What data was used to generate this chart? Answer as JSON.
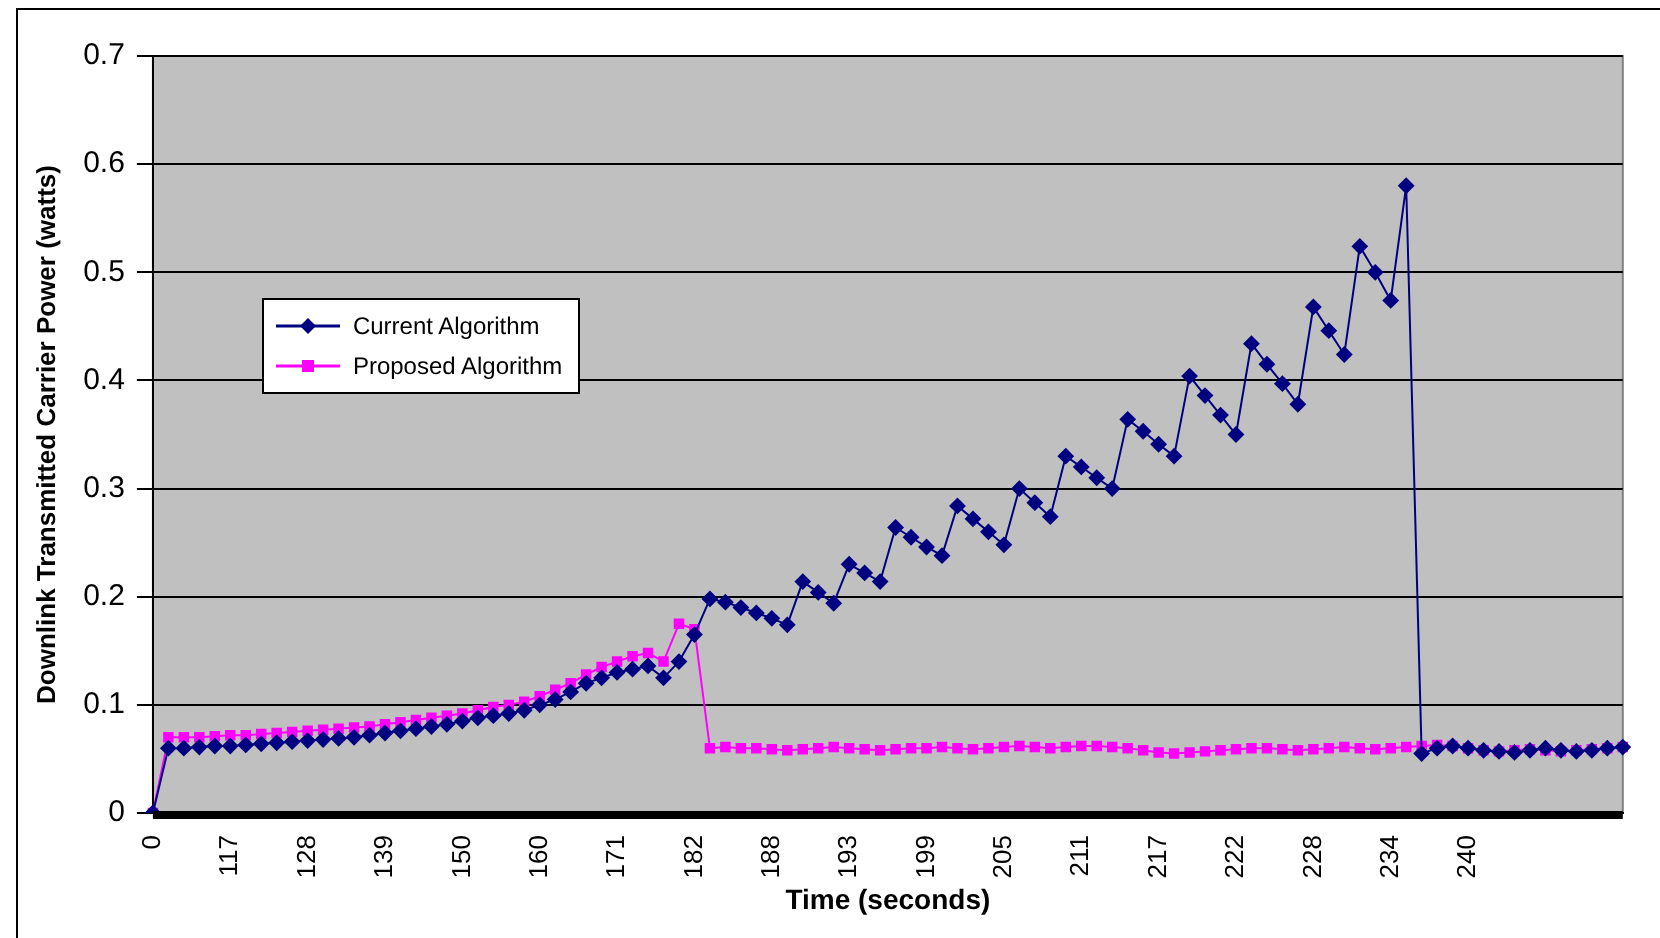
{
  "chart_data": {
    "type": "line",
    "xlabel": "Time (seconds)",
    "ylabel": "Downlink Transmitted Carrier Power (watts)",
    "categories": [
      "0",
      null,
      null,
      null,
      null,
      "117",
      null,
      null,
      null,
      null,
      "128",
      null,
      null,
      null,
      null,
      "139",
      null,
      null,
      null,
      null,
      "150",
      null,
      null,
      null,
      null,
      "160",
      null,
      null,
      null,
      null,
      "171",
      null,
      null,
      null,
      null,
      "182",
      null,
      null,
      null,
      null,
      "188",
      null,
      null,
      null,
      null,
      "193",
      null,
      null,
      null,
      null,
      "199",
      null,
      null,
      null,
      null,
      "205",
      null,
      null,
      null,
      null,
      "211",
      null,
      null,
      null,
      null,
      "217",
      null,
      null,
      null,
      null,
      "222",
      null,
      null,
      null,
      null,
      "228",
      null,
      null,
      null,
      null,
      "234",
      null,
      null,
      null,
      null,
      "240",
      null,
      null,
      null,
      null,
      null,
      null,
      null,
      null,
      null,
      null
    ],
    "series": [
      {
        "name": "Current Algorithm",
        "color": "#000080",
        "marker": "diamond",
        "values": [
          0,
          0.06,
          0.06,
          0.061,
          0.062,
          0.062,
          0.063,
          0.064,
          0.065,
          0.066,
          0.067,
          0.068,
          0.069,
          0.07,
          0.072,
          0.074,
          0.076,
          0.078,
          0.08,
          0.082,
          0.085,
          0.088,
          0.09,
          0.092,
          0.095,
          0.1,
          0.105,
          0.112,
          0.12,
          0.125,
          0.13,
          0.133,
          0.136,
          0.125,
          0.14,
          0.165,
          0.198,
          0.195,
          0.19,
          0.185,
          0.18,
          0.174,
          0.214,
          0.204,
          0.194,
          0.23,
          0.222,
          0.214,
          0.264,
          0.255,
          0.246,
          0.238,
          0.284,
          0.272,
          0.26,
          0.248,
          0.3,
          0.287,
          0.274,
          0.33,
          0.32,
          0.31,
          0.3,
          0.364,
          0.353,
          0.341,
          0.33,
          0.404,
          0.386,
          0.368,
          0.35,
          0.434,
          0.415,
          0.397,
          0.378,
          0.468,
          0.446,
          0.424,
          0.524,
          0.5,
          0.474,
          0.58,
          0.055,
          0.06,
          0.062,
          0.06,
          0.058,
          0.057,
          0.056,
          0.058,
          0.06,
          0.058,
          0.057,
          0.058,
          0.06,
          0.061
        ]
      },
      {
        "name": "Proposed Algorithm",
        "color": "#ff00ff",
        "marker": "square",
        "values": [
          0,
          0.07,
          0.07,
          0.07,
          0.071,
          0.072,
          0.072,
          0.073,
          0.074,
          0.075,
          0.076,
          0.077,
          0.078,
          0.079,
          0.08,
          0.082,
          0.084,
          0.086,
          0.088,
          0.09,
          0.092,
          0.095,
          0.098,
          0.1,
          0.103,
          0.108,
          0.114,
          0.12,
          0.128,
          0.135,
          0.14,
          0.145,
          0.148,
          0.14,
          0.175,
          0.17,
          0.06,
          0.061,
          0.06,
          0.06,
          0.059,
          0.058,
          0.059,
          0.06,
          0.061,
          0.06,
          0.059,
          0.058,
          0.059,
          0.06,
          0.06,
          0.061,
          0.06,
          0.059,
          0.06,
          0.061,
          0.062,
          0.061,
          0.06,
          0.061,
          0.062,
          0.062,
          0.061,
          0.06,
          0.058,
          0.056,
          0.055,
          0.056,
          0.057,
          0.058,
          0.059,
          0.06,
          0.06,
          0.059,
          0.058,
          0.059,
          0.06,
          0.061,
          0.06,
          0.059,
          0.06,
          0.061,
          0.062,
          0.063,
          0.062,
          0.06,
          0.058,
          0.057,
          0.058,
          0.059,
          0.058,
          0.057,
          0.058,
          0.059,
          0.06,
          0.061
        ]
      }
    ],
    "ylim": [
      0,
      0.7
    ],
    "yticks": [
      0,
      0.1,
      0.2,
      0.3,
      0.4,
      0.5,
      0.6,
      0.7
    ],
    "grid": "y",
    "legend": "left",
    "line_style": "solid"
  }
}
